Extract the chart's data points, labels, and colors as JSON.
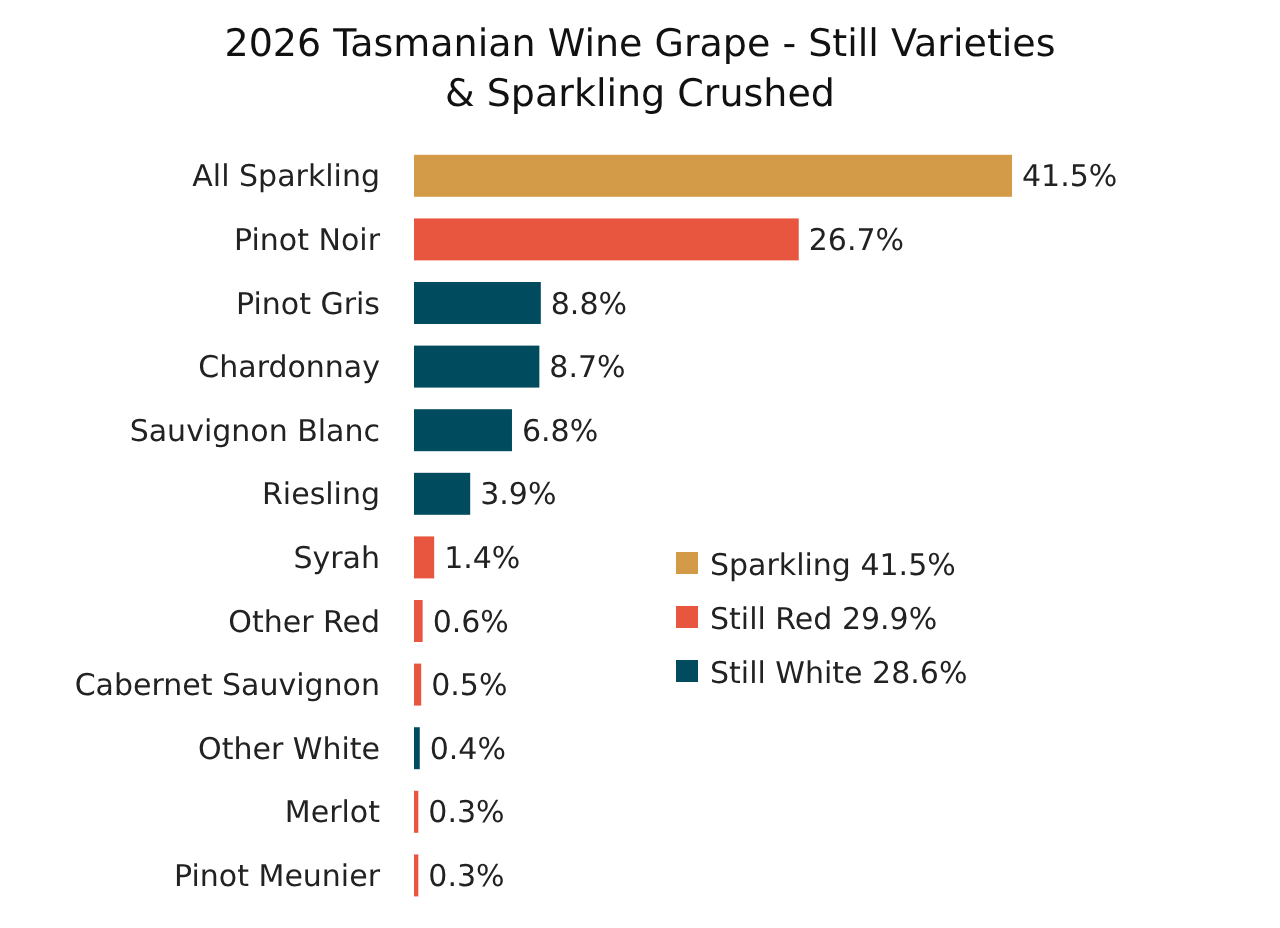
{
  "chart_data": {
    "type": "bar",
    "orientation": "horizontal",
    "title": "2026 Tasmanian Wine Grape - Still Varieties\n& Sparkling Crushed",
    "categories": [
      "All Sparkling",
      "Pinot Noir",
      "Pinot Gris",
      "Chardonnay",
      "Sauvignon Blanc",
      "Riesling",
      "Syrah",
      "Other Red",
      "Cabernet Sauvignon",
      "Other White",
      "Merlot",
      "Pinot Meunier"
    ],
    "series": [
      {
        "name": "Sparkling 41.5%",
        "color": "#d39b48",
        "values": [
          41.5,
          null,
          null,
          null,
          null,
          null,
          null,
          null,
          null,
          null,
          null,
          null
        ],
        "value_labels": [
          "41.5%",
          null,
          null,
          null,
          null,
          null,
          null,
          null,
          null,
          null,
          null,
          null
        ]
      },
      {
        "name": "Still Red 29.9%",
        "color": "#e9563f",
        "values": [
          null,
          26.7,
          null,
          null,
          null,
          null,
          1.4,
          0.6,
          0.5,
          null,
          0.3,
          0.3
        ],
        "value_labels": [
          null,
          "26.7%",
          null,
          null,
          null,
          null,
          "1.4%",
          "0.6%",
          "0.5%",
          null,
          "0.3%",
          "0.3%"
        ]
      },
      {
        "name": "Still White 28.6%",
        "color": "#004c5e",
        "values": [
          null,
          null,
          8.8,
          8.7,
          6.8,
          3.9,
          null,
          null,
          null,
          0.4,
          null,
          null
        ],
        "value_labels": [
          null,
          null,
          "8.8%",
          "8.7%",
          "6.8%",
          "3.9%",
          null,
          null,
          null,
          "0.4%",
          null,
          null
        ]
      }
    ],
    "legend": "right"
  }
}
